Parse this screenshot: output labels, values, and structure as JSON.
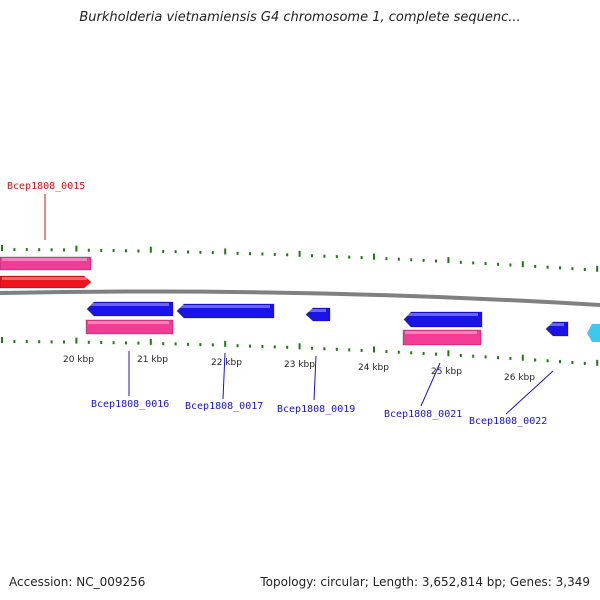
{
  "title": "Burkholderia vietnamiensis G4 chromosome 1, complete sequenc...",
  "footer": {
    "accession": "Accession: NC_009256",
    "topology": "Topology: circular; Length: 3,652,814 bp; Genes: 3,349"
  },
  "colors": {
    "gene_blue": "#1a14e6",
    "gene_pink": "#f23c96",
    "gene_red": "#f0141e",
    "gene_cyan": "#3cc8f0",
    "tick_green": "#1e7814",
    "label_blue": "#1a14c8",
    "label_red": "#c81414",
    "backbone": "#808080"
  },
  "scale_labels": [
    "20 kbp",
    "21 kbp",
    "22 kbp",
    "23 kbp",
    "24 kbp",
    "25 kbp",
    "26 kbp"
  ],
  "gene_labels": [
    {
      "name": "Bcep1808_0015",
      "color": "red"
    },
    {
      "name": "Bcep1808_0016",
      "color": "blue"
    },
    {
      "name": "Bcep1808_0017",
      "color": "blue"
    },
    {
      "name": "Bcep1808_0019",
      "color": "blue"
    },
    {
      "name": "Bcep1808_0021",
      "color": "blue"
    },
    {
      "name": "Bcep1808_0022",
      "color": "blue"
    }
  ]
}
